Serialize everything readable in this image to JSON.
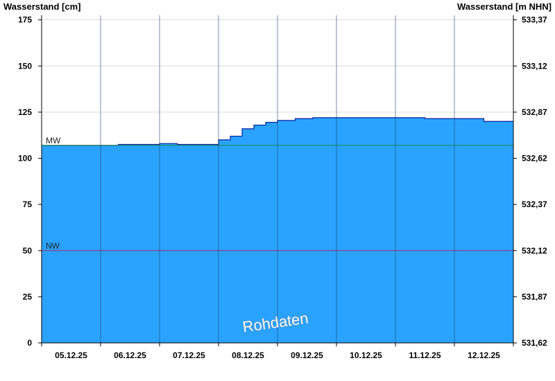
{
  "chart_data": {
    "type": "area",
    "ylabel_left": "Wasserstand [cm]",
    "ylabel_right": "Wasserstand [m NHN]",
    "ylim": [
      0,
      177.5
    ],
    "y_ticks": [
      0,
      25,
      50,
      75,
      100,
      125,
      150,
      175
    ],
    "y_tick_labels": [
      "0",
      "25",
      "50",
      "75",
      "100",
      "125",
      "150",
      "175"
    ],
    "right_tick_labels": [
      "531,62",
      "531,87",
      "532,12",
      "532,37",
      "532,62",
      "532,87",
      "533,12",
      "533,37"
    ],
    "x_labels": [
      "05.12.25",
      "06.12.25",
      "07.12.25",
      "08.12.25",
      "09.12.25",
      "10.12.25",
      "11.12.25",
      "12.12.25"
    ],
    "x_unit": "days since start of chart",
    "xlim": [
      0,
      8
    ],
    "x": [
      0,
      0.3,
      0.5,
      1.0,
      1.3,
      1.6,
      2.0,
      2.3,
      2.6,
      2.8,
      3.0,
      3.2,
      3.4,
      3.6,
      3.8,
      4.0,
      4.3,
      4.6,
      5.0,
      5.5,
      6.0,
      6.5,
      7.0,
      7.5,
      8.0
    ],
    "values": [
      107,
      107,
      107,
      107,
      107.5,
      107.5,
      108,
      107.5,
      107.5,
      107.5,
      110,
      112,
      116,
      118,
      119.5,
      120.5,
      121.5,
      122,
      122,
      122,
      122,
      121.5,
      121.5,
      120,
      120
    ],
    "reference_lines": [
      {
        "label": "MW",
        "value": 107,
        "color": "#1f8a3a"
      },
      {
        "label": "NW",
        "value": 50,
        "color": "#b0255f"
      }
    ],
    "fill_color": "#29a3ff",
    "line_color": "#0b1e9e",
    "watermark": "Rohdaten"
  }
}
